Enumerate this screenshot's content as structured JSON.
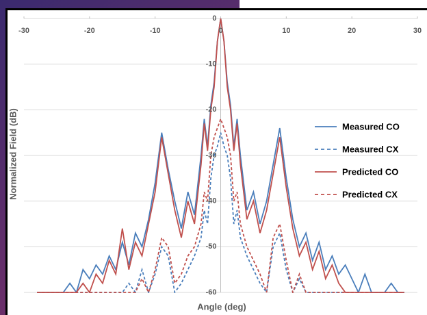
{
  "chart_data": {
    "type": "line",
    "x_label": "Angle (deg)",
    "y_label": "Normalized Field (dB)",
    "xlim": [
      -30,
      30
    ],
    "xticks": [
      -30,
      -20,
      -10,
      0,
      10,
      20,
      30
    ],
    "ylim": [
      -60,
      0
    ],
    "yticks": [
      0,
      -10,
      -20,
      -30,
      -40,
      -50,
      -60
    ],
    "grid": true,
    "legend": "right",
    "x": [
      -28,
      -27,
      -26,
      -25,
      -24,
      -23,
      -22,
      -21,
      -20,
      -19,
      -18,
      -17,
      -16,
      -15,
      -14,
      -13,
      -12,
      -11,
      -10,
      -9,
      -8,
      -7,
      -6,
      -5,
      -4,
      -3,
      -2.5,
      -2,
      -1.5,
      -1,
      -0.5,
      0,
      0.5,
      1,
      1.5,
      2,
      2.5,
      3,
      4,
      5,
      6,
      7,
      8,
      9,
      10,
      11,
      12,
      13,
      14,
      15,
      16,
      17,
      18,
      19,
      20,
      21,
      22,
      23,
      24,
      25,
      26,
      27,
      28
    ],
    "series": [
      {
        "name": "Measured CO",
        "color": "#4a7ebb",
        "style": "solid",
        "values": [
          -60,
          -60,
          -60,
          -60,
          -60,
          -58,
          -60,
          -55,
          -57,
          -54,
          -56,
          -52,
          -55,
          -49,
          -54,
          -47,
          -50,
          -44,
          -36,
          -25,
          -33,
          -40,
          -46,
          -38,
          -43,
          -30,
          -22,
          -28,
          -19,
          -14,
          -5,
          0,
          -5,
          -14,
          -19,
          -28,
          -22,
          -30,
          -42,
          -38,
          -45,
          -40,
          -32,
          -24,
          -35,
          -44,
          -50,
          -47,
          -53,
          -49,
          -55,
          -52,
          -56,
          -54,
          -57,
          -60,
          -56,
          -60,
          -60,
          -60,
          -58,
          -60,
          -60
        ]
      },
      {
        "name": "Measured CX",
        "color": "#4a7ebb",
        "style": "dashed",
        "values": [
          -60,
          -60,
          -60,
          -60,
          -60,
          -60,
          -60,
          -60,
          -60,
          -60,
          -60,
          -60,
          -60,
          -60,
          -58,
          -60,
          -55,
          -60,
          -56,
          -50,
          -52,
          -60,
          -58,
          -55,
          -52,
          -48,
          -42,
          -45,
          -35,
          -30,
          -28,
          -25,
          -28,
          -30,
          -35,
          -45,
          -42,
          -48,
          -52,
          -55,
          -58,
          -60,
          -50,
          -47,
          -55,
          -60,
          -57,
          -60,
          -60,
          -60,
          -60,
          -60,
          -60,
          -60,
          -60,
          -60,
          -60,
          -60,
          -60,
          -60,
          -60,
          -60,
          -60
        ]
      },
      {
        "name": "Predicted CO",
        "color": "#c0504d",
        "style": "solid",
        "values": [
          -60,
          -60,
          -60,
          -60,
          -60,
          -60,
          -60,
          -58,
          -60,
          -56,
          -58,
          -53,
          -56,
          -46,
          -55,
          -49,
          -52,
          -45,
          -38,
          -26,
          -34,
          -42,
          -48,
          -40,
          -45,
          -32,
          -23,
          -29,
          -20,
          -15,
          -5,
          0,
          -5,
          -15,
          -20,
          -29,
          -23,
          -32,
          -44,
          -40,
          -47,
          -42,
          -34,
          -26,
          -37,
          -46,
          -52,
          -49,
          -55,
          -51,
          -57,
          -54,
          -58,
          -60,
          -60,
          -60,
          -60,
          -60,
          -60,
          -60,
          -60,
          -60,
          -60
        ]
      },
      {
        "name": "Predicted CX",
        "color": "#c0504d",
        "style": "dashed",
        "values": [
          -60,
          -60,
          -60,
          -60,
          -60,
          -60,
          -60,
          -60,
          -60,
          -60,
          -60,
          -60,
          -60,
          -60,
          -60,
          -60,
          -57,
          -60,
          -55,
          -48,
          -50,
          -58,
          -56,
          -52,
          -50,
          -45,
          -38,
          -40,
          -30,
          -26,
          -24,
          -22,
          -24,
          -26,
          -30,
          -40,
          -38,
          -45,
          -50,
          -53,
          -56,
          -60,
          -48,
          -45,
          -53,
          -60,
          -56,
          -60,
          -60,
          -60,
          -60,
          -60,
          -60,
          -60,
          -60,
          -60,
          -60,
          -60,
          -60,
          -60,
          -60,
          -60,
          -60
        ]
      }
    ]
  }
}
